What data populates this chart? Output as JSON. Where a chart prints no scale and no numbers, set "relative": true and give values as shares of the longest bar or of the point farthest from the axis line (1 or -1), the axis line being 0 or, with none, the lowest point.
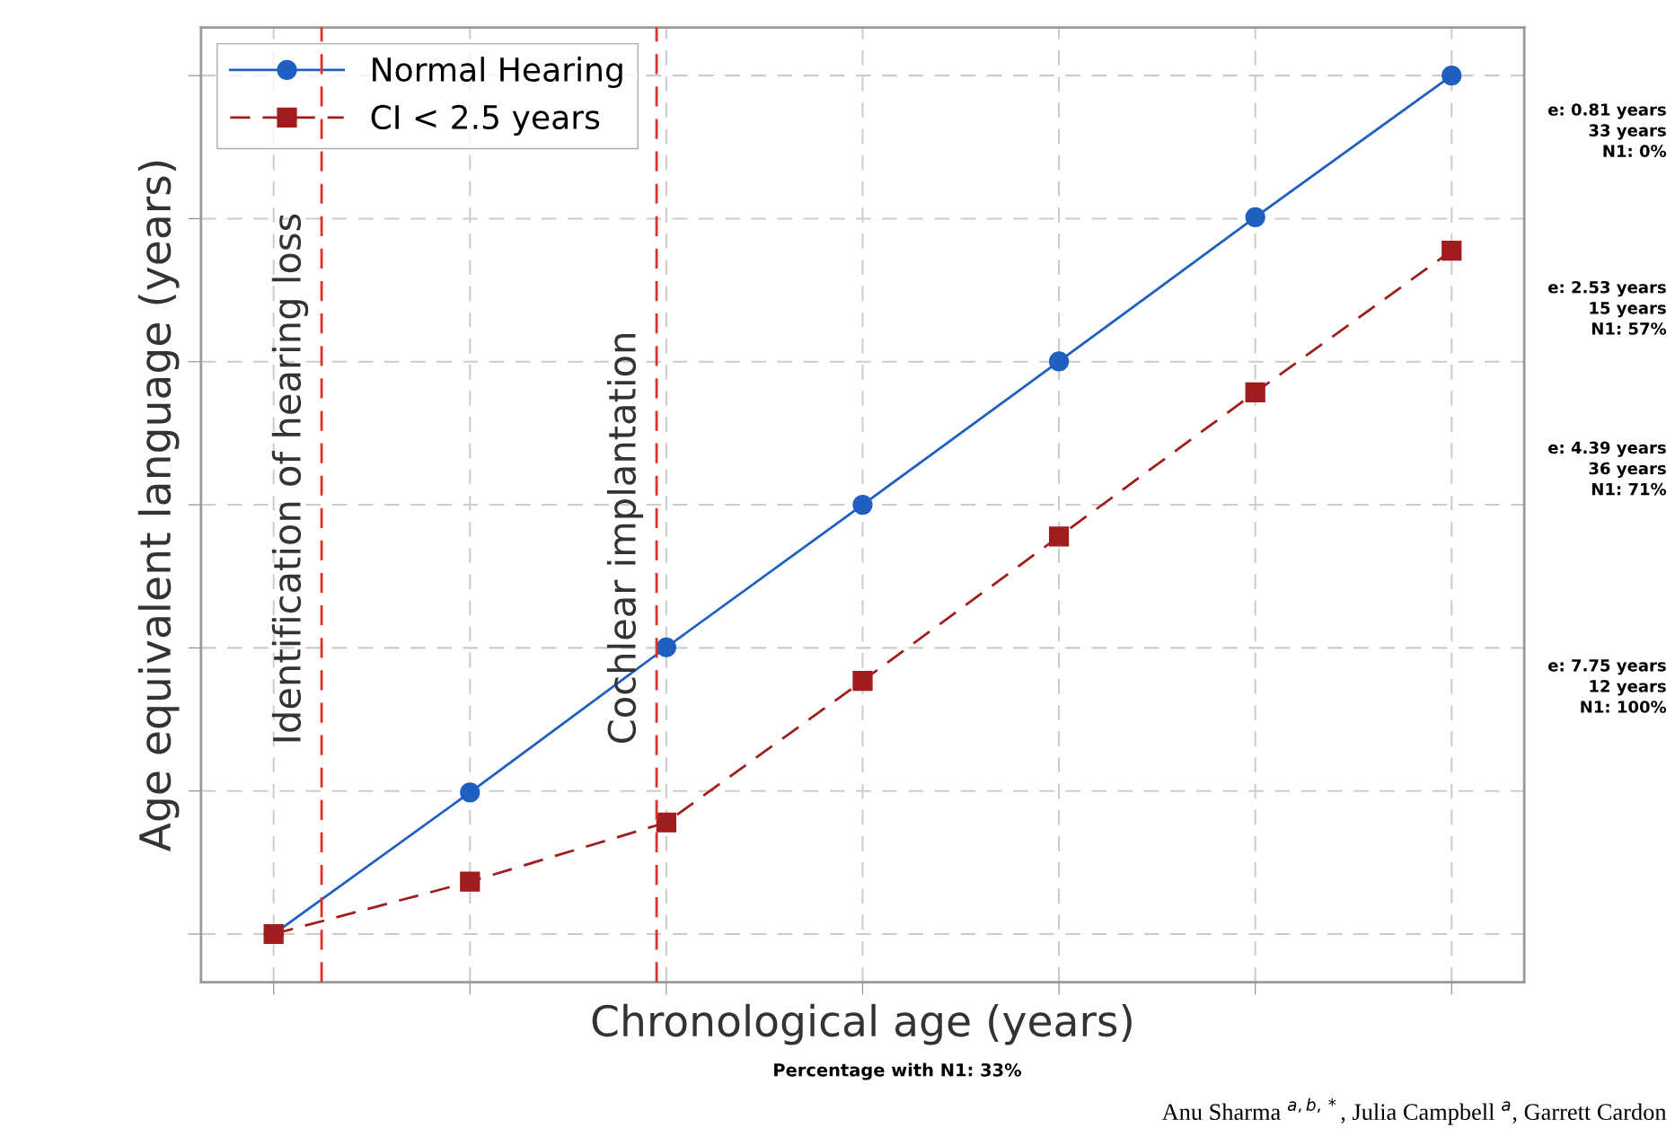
{
  "chart_data": {
    "type": "line",
    "relative": true,
    "xlabel": "Chronological age (years)",
    "ylabel": "Age equivalent language (years)",
    "categories": [
      null,
      null,
      null,
      null,
      null,
      null,
      null
    ],
    "series": [
      {
        "name": "Normal Hearing",
        "color": "#1f5fbf",
        "values": [
          0,
          0.165,
          0.334,
          0.5,
          0.667,
          0.835,
          1
        ],
        "marker": "circle",
        "line_style": "solid"
      },
      {
        "name": "CI < 2.5 years",
        "color": "#a11d1d",
        "values": [
          0,
          0.061,
          0.13,
          0.295,
          0.463,
          0.631,
          0.796
        ],
        "marker": "square",
        "line_style": "dashed"
      }
    ],
    "grid": true,
    "legend": "top left",
    "annotations": [
      "Identification of hearing loss",
      "Cochlear implantation",
      "e: 0.81 years\n33 years\nN1: 0%",
      "e: 2.53 years\n15 years\nN1: 57%",
      "e: 4.39 years\n36 years\nN1: 71%",
      "e: 7.75 years\n12 years\nN1: 100%",
      "Percentage with N1: 33%",
      "Anu Sharma $^{a,b,*}$, Julia Campbell $^{a}$, Garrett Cardon"
    ]
  }
}
